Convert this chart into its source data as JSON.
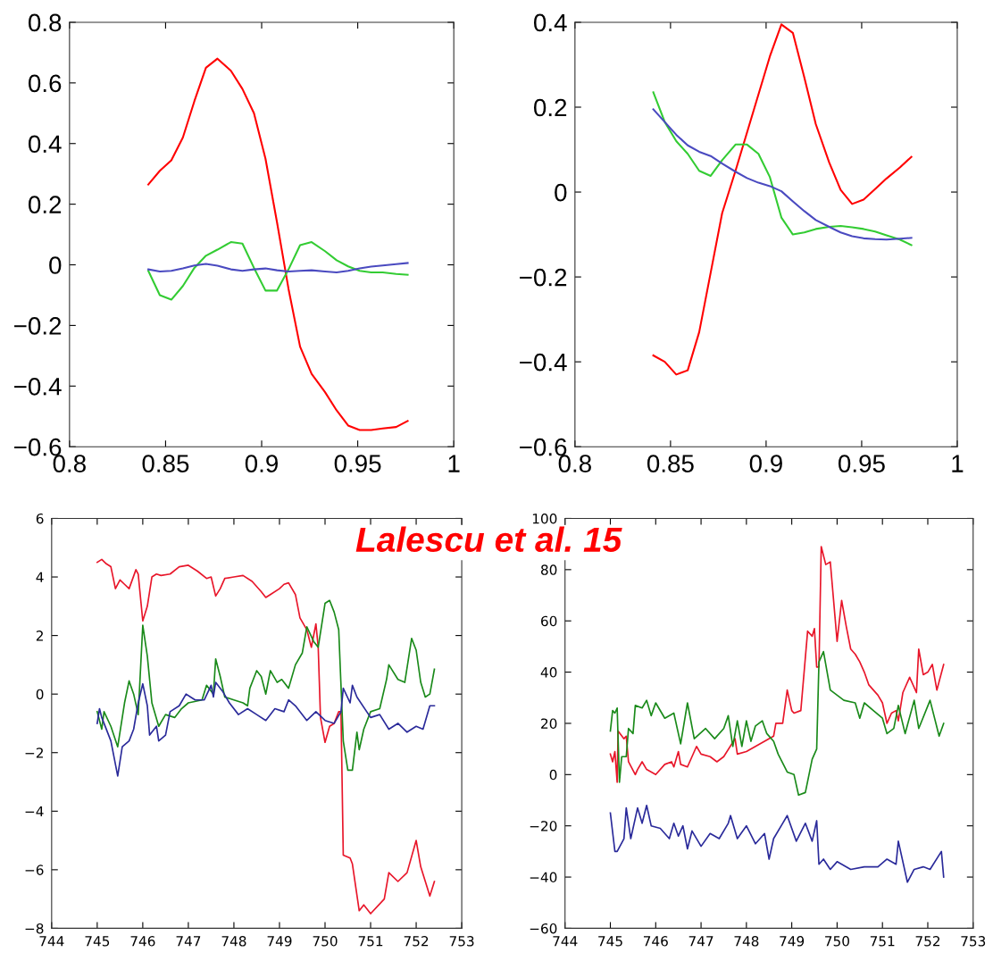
{
  "chart_data": [
    {
      "type": "line",
      "x": [
        0.841,
        0.847,
        0.853,
        0.859,
        0.865,
        0.871,
        0.877,
        0.884,
        0.89,
        0.896,
        0.902,
        0.908,
        0.914,
        0.92,
        0.926,
        0.933,
        0.939,
        0.945,
        0.951,
        0.957,
        0.963,
        0.97,
        0.976
      ],
      "xlim": [
        0.8,
        1
      ],
      "xticks": [
        0.8,
        0.85,
        0.9,
        0.95,
        1
      ],
      "ylim": [
        -0.6,
        0.8
      ],
      "yticks": [
        -0.6,
        -0.4,
        -0.2,
        0,
        0.2,
        0.4,
        0.6,
        0.8
      ],
      "grid": false,
      "legend": false,
      "series": [
        {
          "color": "#ff0000",
          "values": [
            0.265,
            0.31,
            0.345,
            0.42,
            0.54,
            0.65,
            0.68,
            0.64,
            0.58,
            0.5,
            0.35,
            0.14,
            -0.08,
            -0.27,
            -0.36,
            -0.42,
            -0.48,
            -0.53,
            -0.545,
            -0.545,
            -0.54,
            -0.535,
            -0.515
          ]
        },
        {
          "color": "#33cc33",
          "values": [
            -0.02,
            -0.1,
            -0.115,
            -0.07,
            -0.01,
            0.03,
            0.05,
            0.075,
            0.07,
            -0.01,
            -0.085,
            -0.085,
            -0.015,
            0.065,
            0.075,
            0.045,
            0.015,
            -0.005,
            -0.02,
            -0.025,
            -0.025,
            -0.03,
            -0.033
          ]
        },
        {
          "color": "#4a4ac0",
          "values": [
            -0.015,
            -0.022,
            -0.02,
            -0.012,
            -0.002,
            0.003,
            -0.003,
            -0.015,
            -0.02,
            -0.015,
            -0.012,
            -0.018,
            -0.022,
            -0.02,
            -0.018,
            -0.022,
            -0.025,
            -0.02,
            -0.012,
            -0.006,
            -0.002,
            0.002,
            0.006
          ]
        }
      ]
    },
    {
      "type": "line",
      "x": [
        0.841,
        0.847,
        0.853,
        0.859,
        0.865,
        0.871,
        0.877,
        0.884,
        0.89,
        0.896,
        0.902,
        0.908,
        0.914,
        0.92,
        0.926,
        0.933,
        0.939,
        0.945,
        0.951,
        0.957,
        0.963,
        0.97,
        0.976
      ],
      "xlim": [
        0.8,
        1
      ],
      "xticks": [
        0.8,
        0.85,
        0.9,
        0.95,
        1
      ],
      "ylim": [
        -0.6,
        0.4
      ],
      "yticks": [
        -0.6,
        -0.4,
        -0.2,
        0,
        0.2,
        0.4
      ],
      "grid": false,
      "legend": false,
      "series": [
        {
          "color": "#ff0000",
          "values": [
            -0.385,
            -0.4,
            -0.43,
            -0.42,
            -0.33,
            -0.19,
            -0.05,
            0.05,
            0.14,
            0.23,
            0.32,
            0.395,
            0.375,
            0.27,
            0.16,
            0.07,
            0.005,
            -0.028,
            -0.018,
            0.007,
            0.032,
            0.058,
            0.083
          ]
        },
        {
          "color": "#33cc33",
          "values": [
            0.235,
            0.165,
            0.12,
            0.09,
            0.05,
            0.038,
            0.075,
            0.112,
            0.112,
            0.09,
            0.035,
            -0.06,
            -0.1,
            -0.095,
            -0.087,
            -0.082,
            -0.08,
            -0.083,
            -0.087,
            -0.093,
            -0.102,
            -0.112,
            -0.125
          ]
        },
        {
          "color": "#4a4ac0",
          "values": [
            0.195,
            0.165,
            0.135,
            0.11,
            0.095,
            0.085,
            0.067,
            0.048,
            0.033,
            0.022,
            0.014,
            0.002,
            -0.022,
            -0.045,
            -0.066,
            -0.082,
            -0.095,
            -0.104,
            -0.109,
            -0.111,
            -0.112,
            -0.11,
            -0.108
          ]
        }
      ]
    },
    {
      "type": "line",
      "xlim": [
        744,
        753
      ],
      "xticks": [
        744,
        745,
        746,
        747,
        748,
        749,
        750,
        751,
        752,
        753
      ],
      "ylim": [
        -8,
        6
      ],
      "yticks": [
        -8,
        -6,
        -4,
        -2,
        0,
        2,
        4,
        6
      ],
      "grid": false,
      "legend": false,
      "annotations": [
        "Lalescu et al. 15"
      ],
      "series": [
        {
          "color": "#e8162a",
          "x": [
            745.0,
            745.1,
            745.2,
            745.3,
            745.4,
            745.5,
            745.6,
            745.7,
            745.85,
            745.9,
            746.0,
            746.1,
            746.2,
            746.3,
            746.4,
            746.6,
            746.8,
            747.0,
            747.2,
            747.4,
            747.5,
            747.6,
            747.7,
            747.8,
            748.0,
            748.2,
            748.4,
            748.6,
            748.7,
            748.8,
            749.0,
            749.1,
            749.2,
            749.35,
            749.45,
            749.6,
            749.7,
            749.8,
            749.85,
            749.9,
            750.0,
            750.1,
            750.2,
            750.3,
            750.35,
            750.4,
            750.55,
            750.6,
            750.75,
            750.85,
            751.0,
            751.3,
            751.4,
            751.6,
            751.8,
            752.0,
            752.1,
            752.3,
            752.4
          ],
          "values": [
            4.5,
            4.6,
            4.45,
            4.35,
            3.6,
            3.9,
            3.75,
            3.6,
            4.25,
            4.1,
            2.5,
            3.0,
            4.0,
            4.1,
            4.05,
            4.1,
            4.35,
            4.4,
            4.2,
            3.95,
            4.0,
            3.35,
            3.6,
            3.95,
            4.0,
            4.05,
            3.85,
            3.5,
            3.3,
            3.4,
            3.6,
            3.75,
            3.8,
            3.4,
            2.6,
            2.2,
            1.6,
            2.4,
            1.6,
            -0.8,
            -1.65,
            -1.1,
            -1.0,
            -0.6,
            -0.6,
            -5.5,
            -5.6,
            -5.8,
            -7.4,
            -7.2,
            -7.5,
            -7.0,
            -6.1,
            -6.4,
            -6.1,
            -5.0,
            -5.9,
            -6.9,
            -6.4
          ]
        },
        {
          "color": "#1a8a1a",
          "x": [
            745.0,
            745.1,
            745.15,
            745.3,
            745.45,
            745.6,
            745.7,
            745.8,
            745.9,
            746.0,
            746.1,
            746.2,
            746.35,
            746.5,
            746.7,
            746.85,
            747.0,
            747.3,
            747.4,
            747.55,
            747.6,
            747.7,
            747.8,
            748.0,
            748.2,
            748.3,
            748.35,
            748.5,
            748.6,
            748.7,
            748.8,
            748.95,
            749.05,
            749.2,
            749.35,
            749.5,
            749.6,
            749.75,
            749.85,
            750.0,
            750.1,
            750.2,
            750.3,
            750.4,
            750.5,
            750.6,
            750.7,
            750.75,
            750.85,
            751.0,
            751.2,
            751.35,
            751.4,
            751.6,
            751.75,
            751.9,
            752.0,
            752.1,
            752.2,
            752.3,
            752.4
          ],
          "values": [
            -0.6,
            -1.2,
            -0.6,
            -1.1,
            -1.8,
            -0.3,
            0.45,
            0.0,
            -0.7,
            2.35,
            1.3,
            -0.3,
            -1.1,
            -0.7,
            -0.8,
            -0.5,
            -0.3,
            -0.2,
            0.3,
            0.0,
            1.2,
            0.6,
            -0.1,
            -0.2,
            -0.3,
            -0.4,
            0.2,
            0.8,
            0.6,
            0.0,
            0.8,
            0.4,
            0.5,
            0.2,
            1.0,
            1.4,
            2.3,
            1.8,
            1.6,
            3.1,
            3.2,
            2.8,
            2.2,
            -1.6,
            -2.6,
            -2.6,
            -1.3,
            -1.9,
            -1.2,
            -0.6,
            -0.5,
            0.5,
            1.0,
            0.5,
            0.4,
            1.9,
            1.5,
            0.4,
            -0.1,
            0.0,
            0.85
          ]
        },
        {
          "color": "#2a2a9a",
          "x": [
            745.0,
            745.05,
            745.1,
            745.3,
            745.45,
            745.55,
            745.7,
            745.8,
            745.9,
            746.0,
            746.1,
            746.15,
            746.3,
            746.35,
            746.5,
            746.6,
            746.8,
            746.95,
            747.05,
            747.15,
            747.35,
            747.5,
            747.55,
            747.6,
            747.75,
            747.9,
            748.1,
            748.3,
            748.5,
            748.7,
            748.9,
            749.1,
            749.2,
            749.35,
            749.6,
            749.8,
            750.0,
            750.2,
            750.35,
            750.4,
            750.55,
            750.6,
            750.7,
            751.0,
            751.2,
            751.4,
            751.6,
            751.8,
            752.0,
            752.15,
            752.3,
            752.4
          ],
          "values": [
            -1.0,
            -0.5,
            -0.8,
            -1.6,
            -2.8,
            -1.8,
            -1.6,
            -1.2,
            -0.3,
            0.35,
            -0.4,
            -1.4,
            -1.1,
            -1.6,
            -1.4,
            -0.6,
            -0.4,
            0.0,
            -0.1,
            -0.2,
            -0.2,
            0.3,
            -0.1,
            0.4,
            0.1,
            -0.3,
            -0.7,
            -0.5,
            -0.7,
            -0.9,
            -0.5,
            -0.6,
            -0.2,
            -0.4,
            -0.9,
            -0.6,
            -0.9,
            -1.0,
            -0.6,
            0.2,
            -0.3,
            0.3,
            -0.1,
            -0.8,
            -0.7,
            -1.2,
            -1.0,
            -1.3,
            -1.1,
            -1.2,
            -0.4,
            -0.4
          ]
        }
      ]
    },
    {
      "type": "line",
      "xlim": [
        744,
        753
      ],
      "xticks": [
        744,
        745,
        746,
        747,
        748,
        749,
        750,
        751,
        752,
        753
      ],
      "ylim": [
        -60,
        100
      ],
      "yticks": [
        -60,
        -40,
        -20,
        0,
        20,
        40,
        60,
        80,
        100
      ],
      "grid": false,
      "legend": false,
      "series": [
        {
          "color": "#e8162a",
          "x": [
            745.0,
            745.05,
            745.1,
            745.15,
            745.17,
            745.3,
            745.35,
            745.4,
            745.55,
            745.6,
            745.7,
            745.8,
            746.0,
            746.2,
            746.35,
            746.4,
            746.5,
            746.55,
            746.7,
            746.9,
            747.0,
            747.2,
            747.35,
            747.5,
            747.75,
            747.8,
            748.0,
            748.2,
            748.4,
            748.6,
            748.65,
            748.8,
            748.9,
            749.0,
            749.05,
            749.2,
            749.35,
            749.45,
            749.5,
            749.55,
            749.6,
            749.65,
            749.75,
            749.85,
            750.0,
            750.1,
            750.2,
            750.3,
            750.4,
            750.5,
            750.6,
            750.7,
            750.9,
            751.0,
            751.1,
            751.2,
            751.3,
            751.35,
            751.45,
            751.6,
            751.75,
            751.8,
            751.9,
            752.0,
            752.1,
            752.2,
            752.35
          ],
          "values": [
            8,
            5,
            9,
            -3,
            17,
            14,
            15,
            5,
            0,
            2,
            5,
            2,
            0,
            4,
            5,
            3,
            9,
            4,
            3,
            11,
            8,
            7,
            5,
            7,
            14,
            8,
            9,
            11,
            13,
            15,
            20,
            20,
            33,
            25,
            24,
            25,
            56,
            54,
            57,
            42,
            42,
            89,
            82,
            83,
            52,
            68,
            58,
            49,
            47,
            44,
            40,
            35,
            31,
            28,
            20,
            24,
            25,
            21,
            32,
            38,
            32,
            49,
            39,
            40,
            43,
            33,
            43
          ]
        },
        {
          "color": "#1a8a1a",
          "x": [
            745.0,
            745.05,
            745.1,
            745.15,
            745.2,
            745.25,
            745.35,
            745.4,
            745.5,
            745.55,
            745.7,
            745.8,
            745.9,
            746.0,
            746.2,
            746.4,
            746.55,
            746.7,
            746.85,
            747.1,
            747.3,
            747.5,
            747.6,
            747.7,
            747.8,
            747.9,
            748.0,
            748.1,
            748.2,
            748.35,
            748.45,
            748.6,
            748.7,
            748.9,
            749.05,
            749.15,
            749.3,
            749.45,
            749.55,
            749.6,
            749.7,
            749.85,
            750.0,
            750.15,
            750.4,
            750.5,
            750.6,
            750.8,
            751.0,
            751.1,
            751.25,
            751.35,
            751.5,
            751.7,
            751.8,
            752.05,
            752.25,
            752.35
          ],
          "values": [
            17,
            25,
            24,
            26,
            -3,
            7,
            7,
            18,
            16,
            27,
            26,
            29,
            23,
            28,
            22,
            24,
            12,
            28,
            14,
            18,
            14,
            18,
            23,
            11,
            21,
            11,
            21,
            13,
            19,
            21,
            16,
            13,
            8,
            1,
            0,
            -8,
            -7,
            6,
            10,
            44,
            48,
            33,
            31,
            29,
            28,
            22,
            28,
            25,
            22,
            16,
            18,
            27,
            16,
            29,
            18,
            29,
            15,
            20
          ]
        },
        {
          "color": "#2a2a9a",
          "x": [
            745.0,
            745.1,
            745.15,
            745.3,
            745.35,
            745.45,
            745.6,
            745.7,
            745.8,
            745.9,
            746.1,
            746.3,
            746.4,
            746.5,
            746.6,
            746.7,
            746.8,
            747.0,
            747.2,
            747.4,
            747.6,
            747.65,
            747.8,
            748.0,
            748.2,
            748.4,
            748.5,
            748.6,
            748.8,
            748.9,
            749.1,
            749.3,
            749.45,
            749.55,
            749.6,
            749.7,
            749.85,
            750.0,
            750.3,
            750.6,
            750.9,
            751.1,
            751.3,
            751.35,
            751.55,
            751.7,
            751.9,
            752.05,
            752.3,
            752.35
          ],
          "values": [
            -15,
            -30,
            -30,
            -25,
            -13,
            -25,
            -13,
            -19,
            -12,
            -20,
            -21,
            -25,
            -19,
            -24,
            -20,
            -29,
            -22,
            -28,
            -23,
            -25,
            -19,
            -16,
            -25,
            -20,
            -27,
            -23,
            -33,
            -25,
            -19,
            -16,
            -26,
            -19,
            -26,
            -18,
            -35,
            -33,
            -37,
            -34,
            -37,
            -36,
            -36,
            -33,
            -35,
            -26,
            -42,
            -37,
            -36,
            -37,
            -30,
            -40
          ]
        }
      ]
    }
  ]
}
